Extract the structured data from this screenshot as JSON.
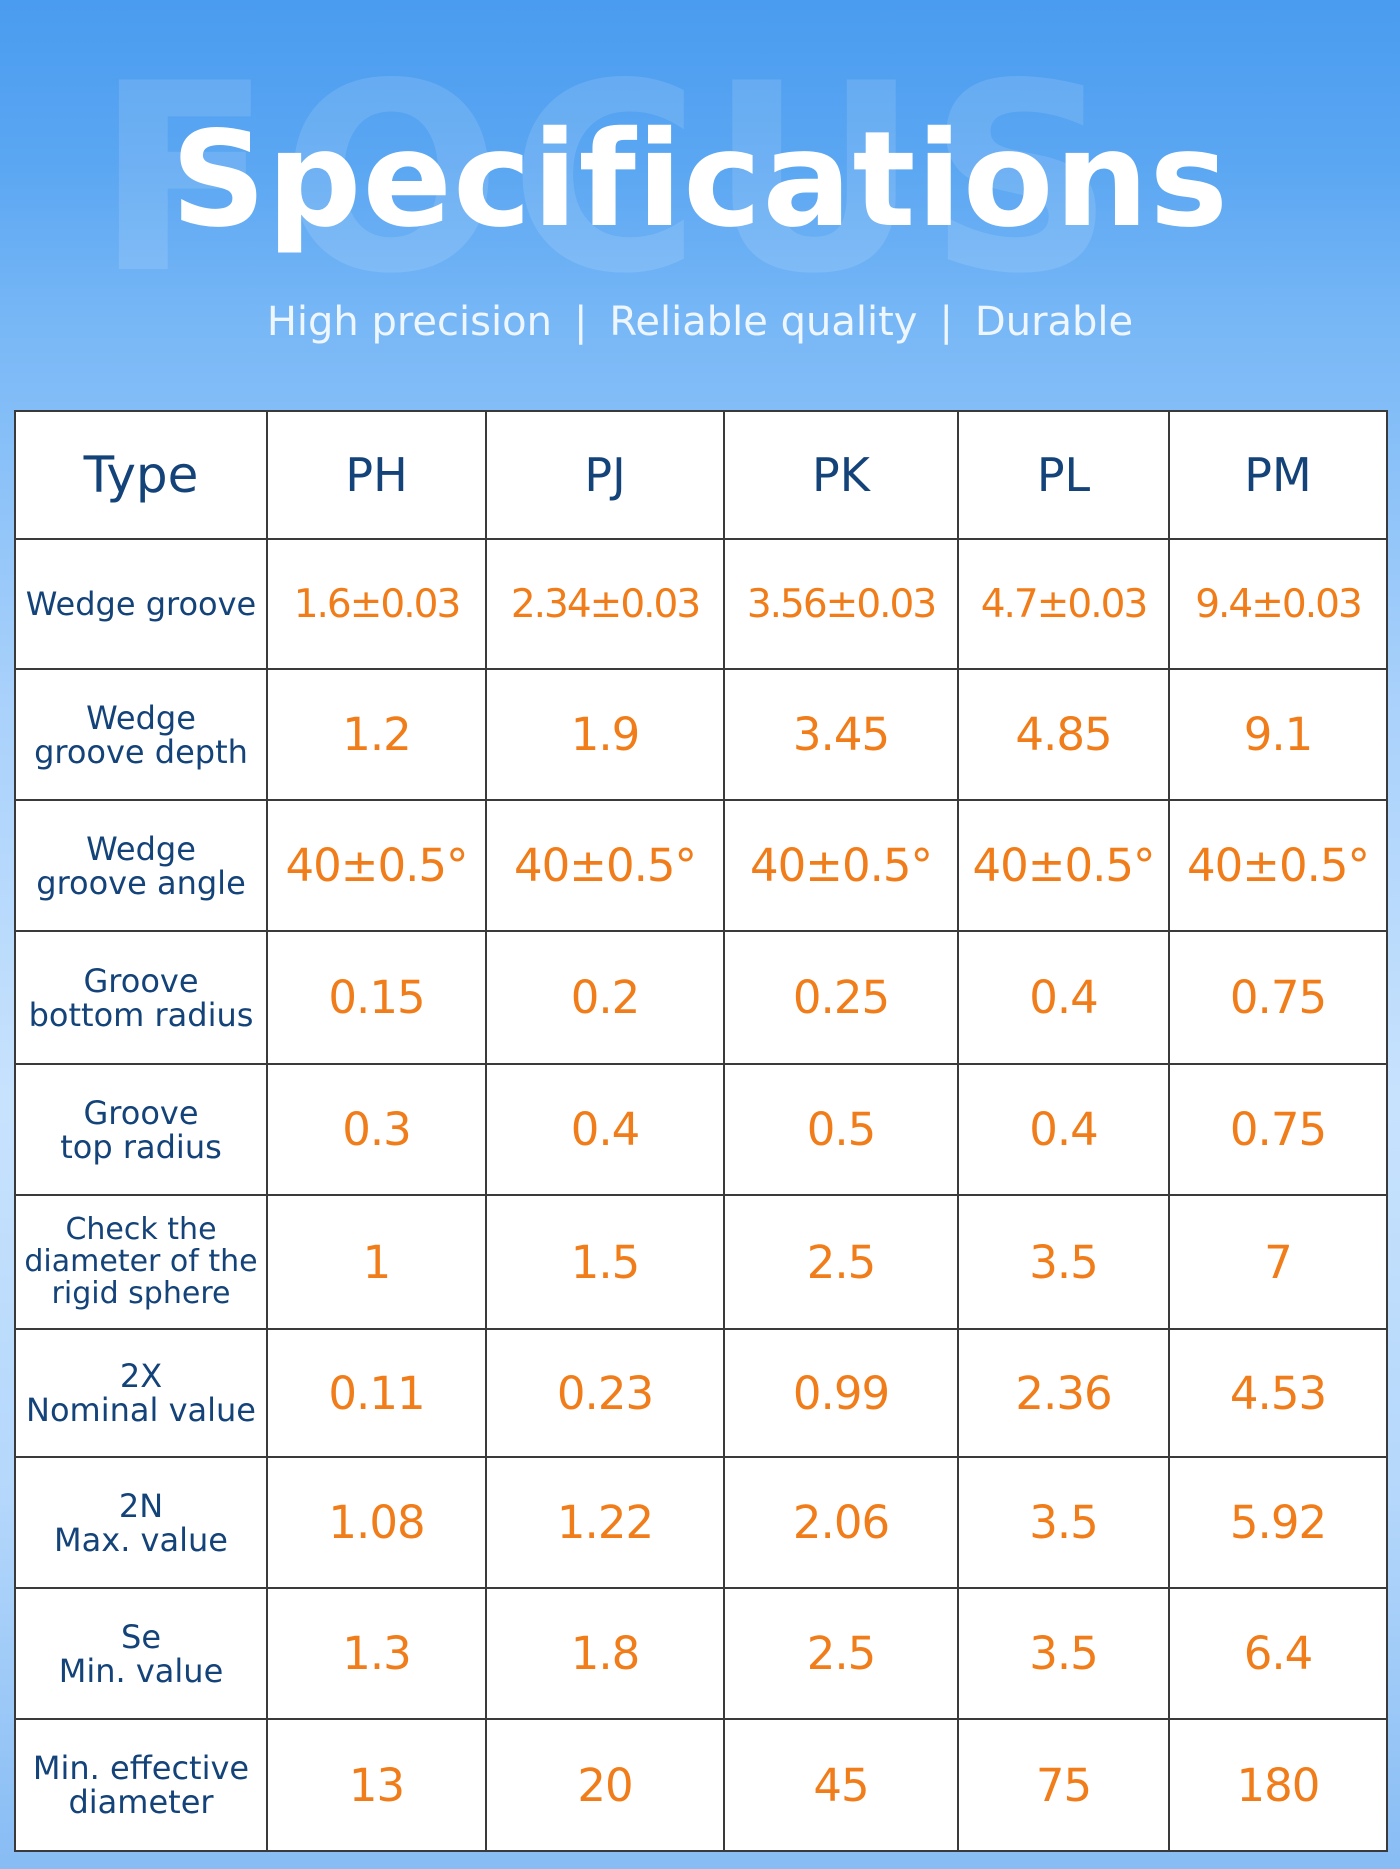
{
  "header": {
    "watermark": "FOCUS",
    "title": "Specifications",
    "tagline": [
      "High precision",
      "Reliable quality",
      "Durable"
    ]
  },
  "table": {
    "type_label": "Type",
    "columns": [
      "PH",
      "PJ",
      "PK",
      "PL",
      "PM"
    ],
    "rows": [
      {
        "label": "Wedge groove",
        "values": [
          "1.6±0.03",
          "2.34±0.03",
          "3.56±0.03",
          "4.7±0.03",
          "9.4±0.03"
        ]
      },
      {
        "label": "Wedge\ngroove depth",
        "values": [
          "1.2",
          "1.9",
          "3.45",
          "4.85",
          "9.1"
        ]
      },
      {
        "label": "Wedge\ngroove angle",
        "values": [
          "40±0.5°",
          "40±0.5°",
          "40±0.5°",
          "40±0.5°",
          "40±0.5°"
        ]
      },
      {
        "label": "Groove\nbottom radius",
        "values": [
          "0.15",
          "0.2",
          "0.25",
          "0.4",
          "0.75"
        ]
      },
      {
        "label": "Groove\ntop radius",
        "values": [
          "0.3",
          "0.4",
          "0.5",
          "0.4",
          "0.75"
        ]
      },
      {
        "label": "Check the\ndiameter of the\nrigid sphere",
        "values": [
          "1",
          "1.5",
          "2.5",
          "3.5",
          "7"
        ]
      },
      {
        "label": "2X\nNominal value",
        "values": [
          "0.11",
          "0.23",
          "0.99",
          "2.36",
          "4.53"
        ]
      },
      {
        "label": "2N\nMax. value",
        "values": [
          "1.08",
          "1.22",
          "2.06",
          "3.5",
          "5.92"
        ]
      },
      {
        "label": "Se\nMin. value",
        "values": [
          "1.3",
          "1.8",
          "2.5",
          "3.5",
          "6.4"
        ]
      },
      {
        "label": "Min. effective\ndiameter",
        "values": [
          "13",
          "20",
          "45",
          "75",
          "180"
        ]
      }
    ]
  },
  "colors": {
    "header_text": "#14437a",
    "value_text": "#f07d1a",
    "background_top": "#4a9cf0",
    "background_bottom": "#87bcf4"
  }
}
